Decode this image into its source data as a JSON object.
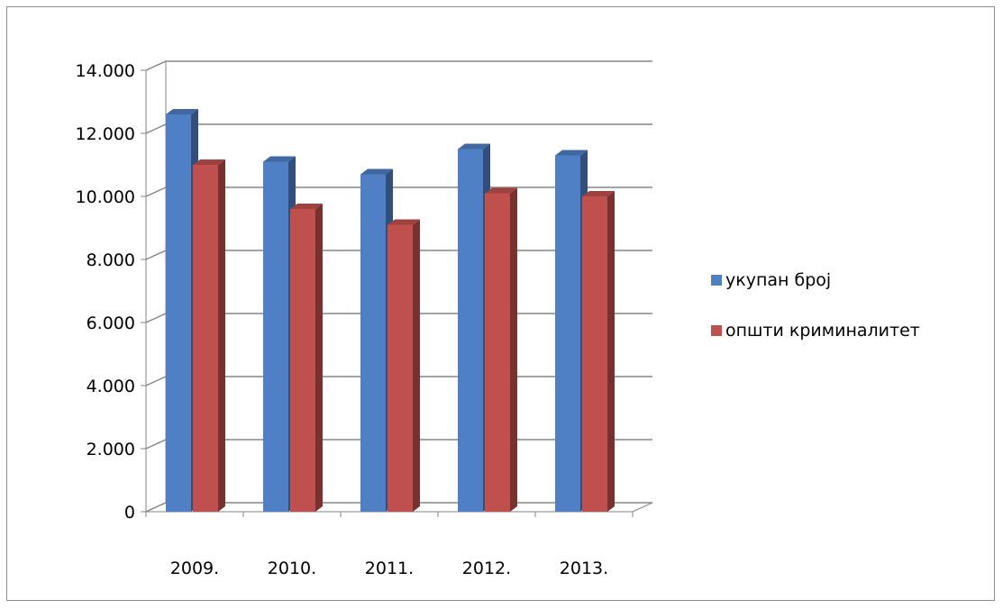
{
  "chart_data": {
    "type": "bar",
    "categories": [
      "2009.",
      "2010.",
      "2011.",
      "2012.",
      "2013."
    ],
    "series": [
      {
        "name": "укупан број",
        "values": [
          12600,
          11100,
          10700,
          11500,
          11300
        ],
        "color": "#4f7fc4"
      },
      {
        "name": "општи криминалитет",
        "values": [
          11000,
          9600,
          9100,
          10100,
          10000
        ],
        "color": "#c0504d"
      }
    ],
    "y_ticks": [
      0,
      2000,
      4000,
      6000,
      8000,
      10000,
      12000,
      14000
    ],
    "y_tick_labels": [
      "0",
      "2.000",
      "4.000",
      "6.000",
      "8.000",
      "10.000",
      "12.000",
      "14.000"
    ],
    "ylim": [
      0,
      14000
    ],
    "grid": true,
    "three_d": true,
    "legend_position": "right"
  }
}
